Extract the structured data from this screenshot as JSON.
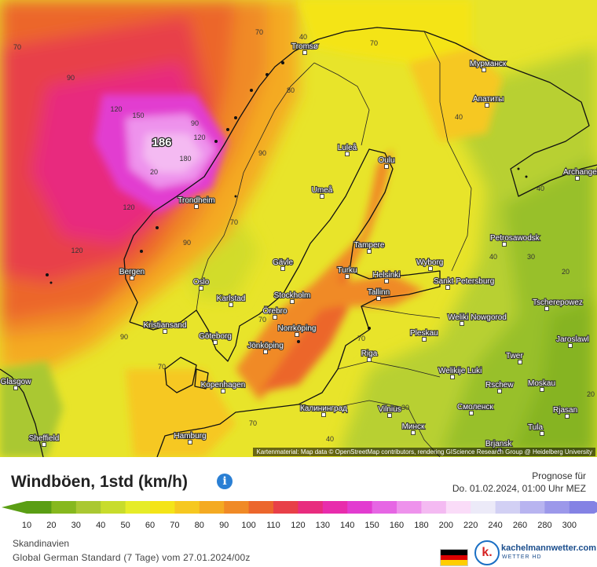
{
  "header": {
    "title": "Windböen, 1std (km/h)",
    "forecast_label": "Prognose für",
    "forecast_time": "Do. 01.02.2024, 01:00 Uhr MEZ"
  },
  "legend": {
    "ticks": [
      "10",
      "20",
      "30",
      "40",
      "50",
      "60",
      "70",
      "80",
      "90",
      "100",
      "110",
      "120",
      "130",
      "140",
      "150",
      "160",
      "180",
      "200",
      "220",
      "240",
      "260",
      "280",
      "300"
    ],
    "colors": [
      "#5a9e14",
      "#86b81e",
      "#aac832",
      "#c8dc2c",
      "#e6ec28",
      "#f4e418",
      "#f6c820",
      "#f4aa22",
      "#f08a26",
      "#ec662c",
      "#e84048",
      "#e82c7e",
      "#e82cac",
      "#e23cd0",
      "#e666e4",
      "#ee92ec",
      "#f4baf2",
      "#fadcf8",
      "#eceaf8",
      "#d2d0f4",
      "#b8b4f0",
      "#9c98ea",
      "#8482e4"
    ]
  },
  "footer": {
    "region": "Skandinavien",
    "model": "Global German Standard  (7 Tage)  vom 27.01.2024/00z",
    "brand": "kachelmannwetter.com",
    "brand_sub": "WETTER HD",
    "flag_colors": [
      "#000000",
      "#dd0000",
      "#ffce00"
    ]
  },
  "map": {
    "attribution": "Kartenmaterial: Map data © OpenStreetMap contributors, rendering GIScience Research Group @ Heidelberg University",
    "cities": [
      {
        "name": "Tromsø"
      },
      {
        "name": "Мурманск"
      },
      {
        "name": "Апатиты"
      },
      {
        "name": "Luleå"
      },
      {
        "name": "Oulu"
      },
      {
        "name": "Archangelsk"
      },
      {
        "name": "Trondheim"
      },
      {
        "name": "Umeå"
      },
      {
        "name": "Tampere"
      },
      {
        "name": "Petrosawodsk"
      },
      {
        "name": "Bergen"
      },
      {
        "name": "Gävle"
      },
      {
        "name": "Turku"
      },
      {
        "name": "Helsinki"
      },
      {
        "name": "Wyborg"
      },
      {
        "name": "Sankt Petersburg"
      },
      {
        "name": "Oslo"
      },
      {
        "name": "Karlstad"
      },
      {
        "name": "Stockholm"
      },
      {
        "name": "Tallinn"
      },
      {
        "name": "Tscherepowez"
      },
      {
        "name": "Örebro"
      },
      {
        "name": "Kristiansand"
      },
      {
        "name": "Norrköping"
      },
      {
        "name": "Weliki Nowgorod"
      },
      {
        "name": "Göteborg"
      },
      {
        "name": "Jönköping"
      },
      {
        "name": "Pleskau"
      },
      {
        "name": "Jaroslawl"
      },
      {
        "name": "Riga"
      },
      {
        "name": "Twer"
      },
      {
        "name": "Welikije Luki"
      },
      {
        "name": "Glasgow"
      },
      {
        "name": "Kopenhagen"
      },
      {
        "name": "Rschew"
      },
      {
        "name": "Moskau"
      },
      {
        "name": "Калининград"
      },
      {
        "name": "Vilnius"
      },
      {
        "name": "Смоленск"
      },
      {
        "name": "Rjasan"
      },
      {
        "name": "Минск"
      },
      {
        "name": "Sheffield"
      },
      {
        "name": "Hamburg"
      },
      {
        "name": "Tula"
      },
      {
        "name": "Brjansk"
      }
    ],
    "value_labels": [
      {
        "value": "186"
      },
      {
        "value": "180"
      },
      {
        "value": "150"
      },
      {
        "value": "120"
      },
      {
        "value": "120"
      },
      {
        "value": "120"
      },
      {
        "value": "90"
      },
      {
        "value": "90"
      },
      {
        "value": "90"
      },
      {
        "value": "90"
      },
      {
        "value": "80"
      },
      {
        "value": "70"
      },
      {
        "value": "70"
      },
      {
        "value": "70"
      },
      {
        "value": "70"
      },
      {
        "value": "70"
      },
      {
        "value": "70"
      },
      {
        "value": "70"
      },
      {
        "value": "70"
      },
      {
        "value": "40"
      },
      {
        "value": "40"
      },
      {
        "value": "40"
      },
      {
        "value": "40"
      },
      {
        "value": "40"
      },
      {
        "value": "30"
      },
      {
        "value": "30"
      },
      {
        "value": "20"
      },
      {
        "value": "20"
      },
      {
        "value": "20"
      },
      {
        "value": "90"
      },
      {
        "value": "120"
      }
    ]
  }
}
